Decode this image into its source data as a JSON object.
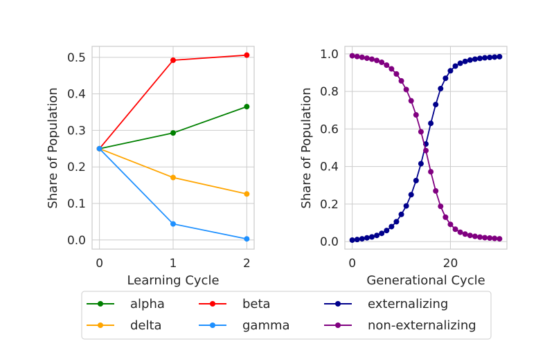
{
  "chart_data": [
    {
      "type": "line",
      "xlabel": "Learning Cycle",
      "ylabel": "Share of Population",
      "x": [
        0,
        1,
        2
      ],
      "xticks": [
        0,
        1,
        2
      ],
      "xtick_labels": [
        "0",
        "1",
        "2"
      ],
      "yticks": [
        0.0,
        0.1,
        0.2,
        0.3,
        0.4,
        0.5
      ],
      "ytick_labels": [
        "0.0",
        "0.1",
        "0.2",
        "0.3",
        "0.4",
        "0.5"
      ],
      "xlim": [
        -0.1,
        2.1
      ],
      "ylim": [
        -0.025,
        0.53
      ],
      "grid": true,
      "series": [
        {
          "name": "alpha",
          "color": "#008000",
          "values": [
            0.25,
            0.293,
            0.365
          ]
        },
        {
          "name": "beta",
          "color": "#ff0000",
          "values": [
            0.25,
            0.492,
            0.506
          ]
        },
        {
          "name": "delta",
          "color": "#ffa500",
          "values": [
            0.25,
            0.171,
            0.126
          ]
        },
        {
          "name": "gamma",
          "color": "#1e90ff",
          "values": [
            0.25,
            0.044,
            0.003
          ]
        }
      ]
    },
    {
      "type": "line",
      "xlabel": "Generational Cycle",
      "ylabel": "Share of Population",
      "x": [
        0,
        1,
        2,
        3,
        4,
        5,
        6,
        7,
        8,
        9,
        10,
        11,
        12,
        13,
        14,
        15,
        16,
        17,
        18,
        19,
        20,
        21,
        22,
        23,
        24,
        25,
        26,
        27,
        28,
        29,
        30
      ],
      "xticks": [
        0,
        20
      ],
      "xtick_labels": [
        "0",
        "20"
      ],
      "yticks": [
        0.0,
        0.2,
        0.4,
        0.6,
        0.8,
        1.0
      ],
      "ytick_labels": [
        "0.0",
        "0.2",
        "0.4",
        "0.6",
        "0.8",
        "1.0"
      ],
      "xlim": [
        -1.5,
        31.5
      ],
      "ylim": [
        -0.04,
        1.04
      ],
      "grid": true,
      "series": [
        {
          "name": "externalizing",
          "color": "#00008b",
          "values": [
            0.008,
            0.011,
            0.015,
            0.02,
            0.025,
            0.033,
            0.044,
            0.059,
            0.08,
            0.106,
            0.145,
            0.19,
            0.25,
            0.325,
            0.415,
            0.52,
            0.63,
            0.73,
            0.815,
            0.87,
            0.91,
            0.935,
            0.95,
            0.96,
            0.967,
            0.972,
            0.976,
            0.979,
            0.981,
            0.983,
            0.985
          ]
        },
        {
          "name": "non-externalizing",
          "color": "#800080",
          "values": [
            0.99,
            0.986,
            0.982,
            0.977,
            0.972,
            0.965,
            0.955,
            0.94,
            0.92,
            0.893,
            0.856,
            0.81,
            0.75,
            0.675,
            0.585,
            0.485,
            0.372,
            0.27,
            0.188,
            0.13,
            0.092,
            0.066,
            0.05,
            0.04,
            0.033,
            0.028,
            0.024,
            0.021,
            0.019,
            0.017,
            0.015
          ]
        }
      ]
    }
  ],
  "legend": {
    "placement": "bottom-center",
    "entries": [
      "alpha",
      "beta",
      "externalizing",
      "delta",
      "gamma",
      "non-externalizing"
    ],
    "colors": [
      "#008000",
      "#ff0000",
      "#00008b",
      "#ffa500",
      "#1e90ff",
      "#800080"
    ]
  }
}
